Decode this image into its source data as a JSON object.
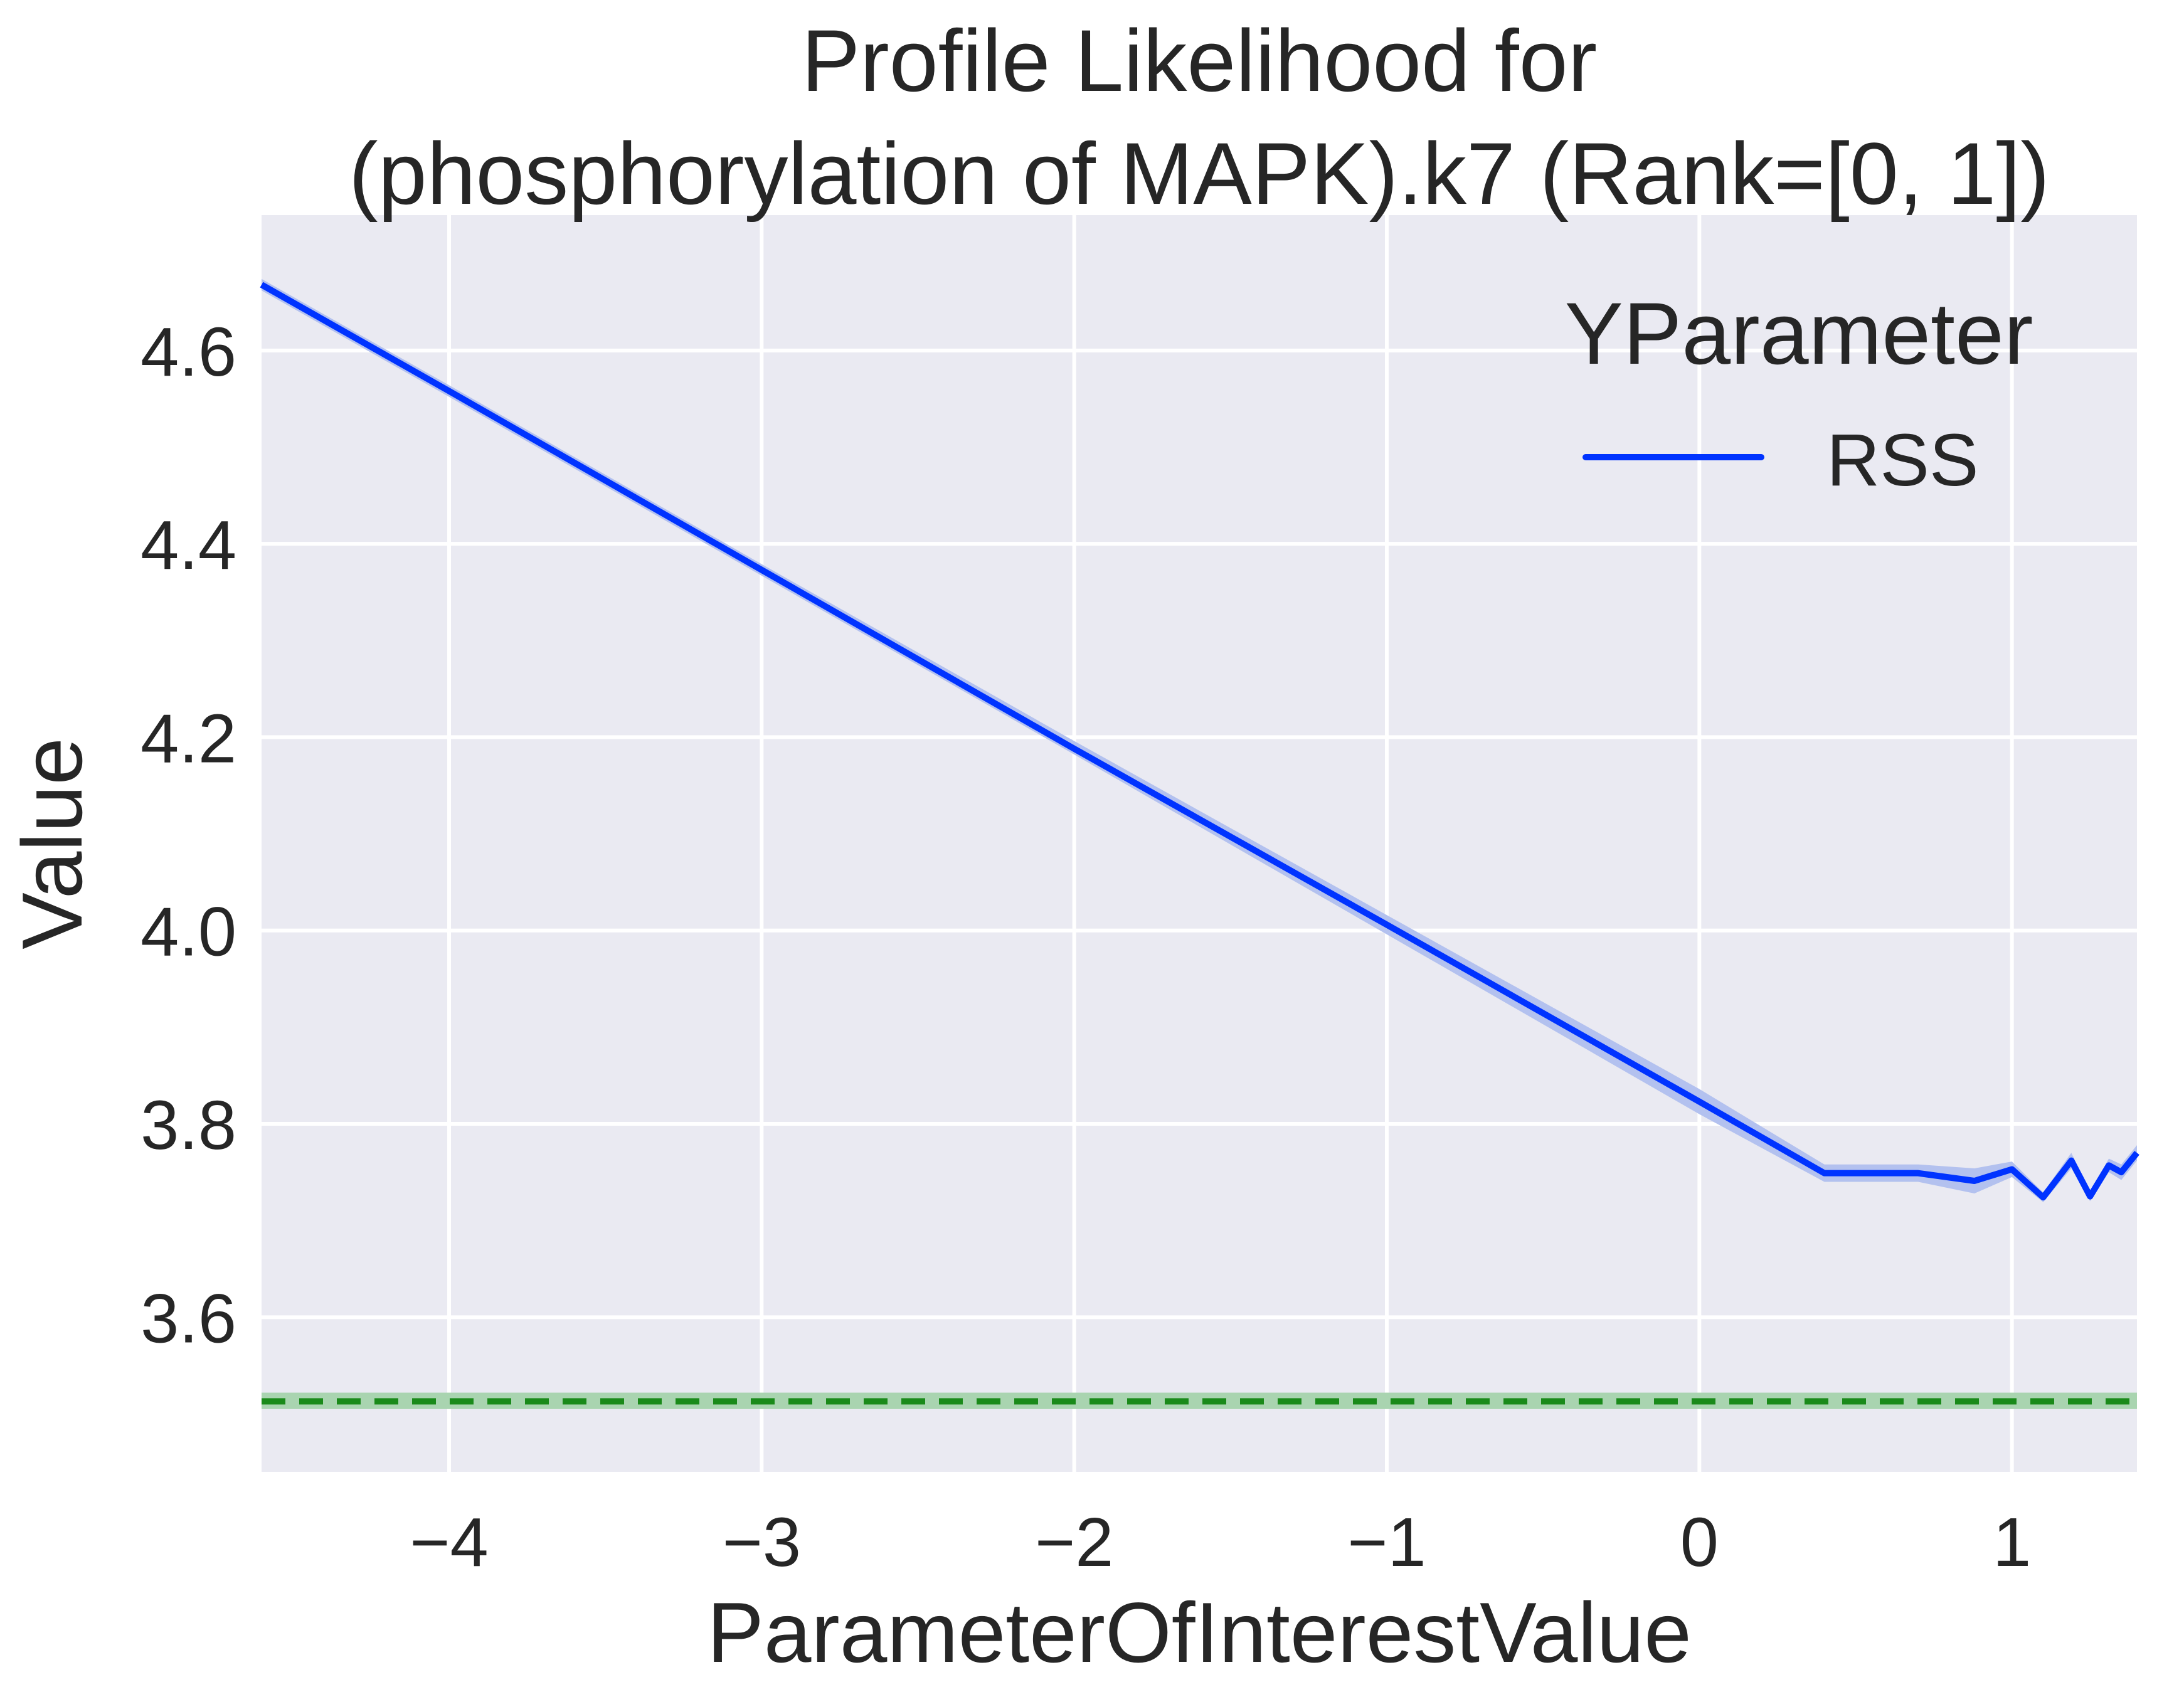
{
  "chart_data": {
    "type": "line",
    "title_lines": [
      "Profile Likelihood for",
      "(phosphorylation of MAPK).k7 (Rank=[0, 1])"
    ],
    "xlabel": "ParameterOfInterestValue",
    "ylabel": "Value",
    "xlim": [
      -4.6,
      1.4
    ],
    "ylim": [
      3.44,
      4.74
    ],
    "x_ticks": [
      -4,
      -3,
      -2,
      -1,
      0,
      1
    ],
    "x_tick_labels": [
      "−4",
      "−3",
      "−2",
      "−1",
      "0",
      "1"
    ],
    "y_ticks": [
      3.6,
      3.8,
      4.0,
      4.2,
      4.4,
      4.6
    ],
    "y_tick_labels": [
      "3.6",
      "3.8",
      "4.0",
      "4.2",
      "4.4",
      "4.6"
    ],
    "grid": true,
    "legend": {
      "title": "YParameter",
      "position": "top-right"
    },
    "series": [
      {
        "name": "RSS",
        "color": "#0033ff",
        "band_color": "#b3c1ef",
        "x": [
          -4.6,
          -4.0,
          -3.0,
          -2.0,
          -1.0,
          0.0,
          0.4,
          0.7,
          0.88,
          1.0,
          1.1,
          1.19,
          1.25,
          1.31,
          1.35,
          1.4
        ],
        "y": [
          4.668,
          4.558,
          4.373,
          4.188,
          4.006,
          3.823,
          3.749,
          3.749,
          3.741,
          3.753,
          3.724,
          3.762,
          3.725,
          3.757,
          3.75,
          3.77
        ],
        "band_low": [
          4.662,
          4.552,
          4.367,
          4.182,
          3.996,
          3.81,
          3.74,
          3.74,
          3.728,
          3.745,
          3.719,
          3.754,
          3.72,
          3.75,
          3.742,
          3.762
        ],
        "band_high": [
          4.674,
          4.564,
          4.379,
          4.196,
          4.016,
          3.836,
          3.758,
          3.758,
          3.754,
          3.761,
          3.729,
          3.77,
          3.73,
          3.764,
          3.758,
          3.778
        ]
      }
    ],
    "reference_line": {
      "y": 3.513,
      "band": [
        3.505,
        3.522
      ],
      "color": "#1a8a1a",
      "band_color": "#a9d4b0",
      "style": "dashed"
    },
    "colors": {
      "plot_background": "#eaeaf2",
      "grid": "#ffffff"
    }
  }
}
